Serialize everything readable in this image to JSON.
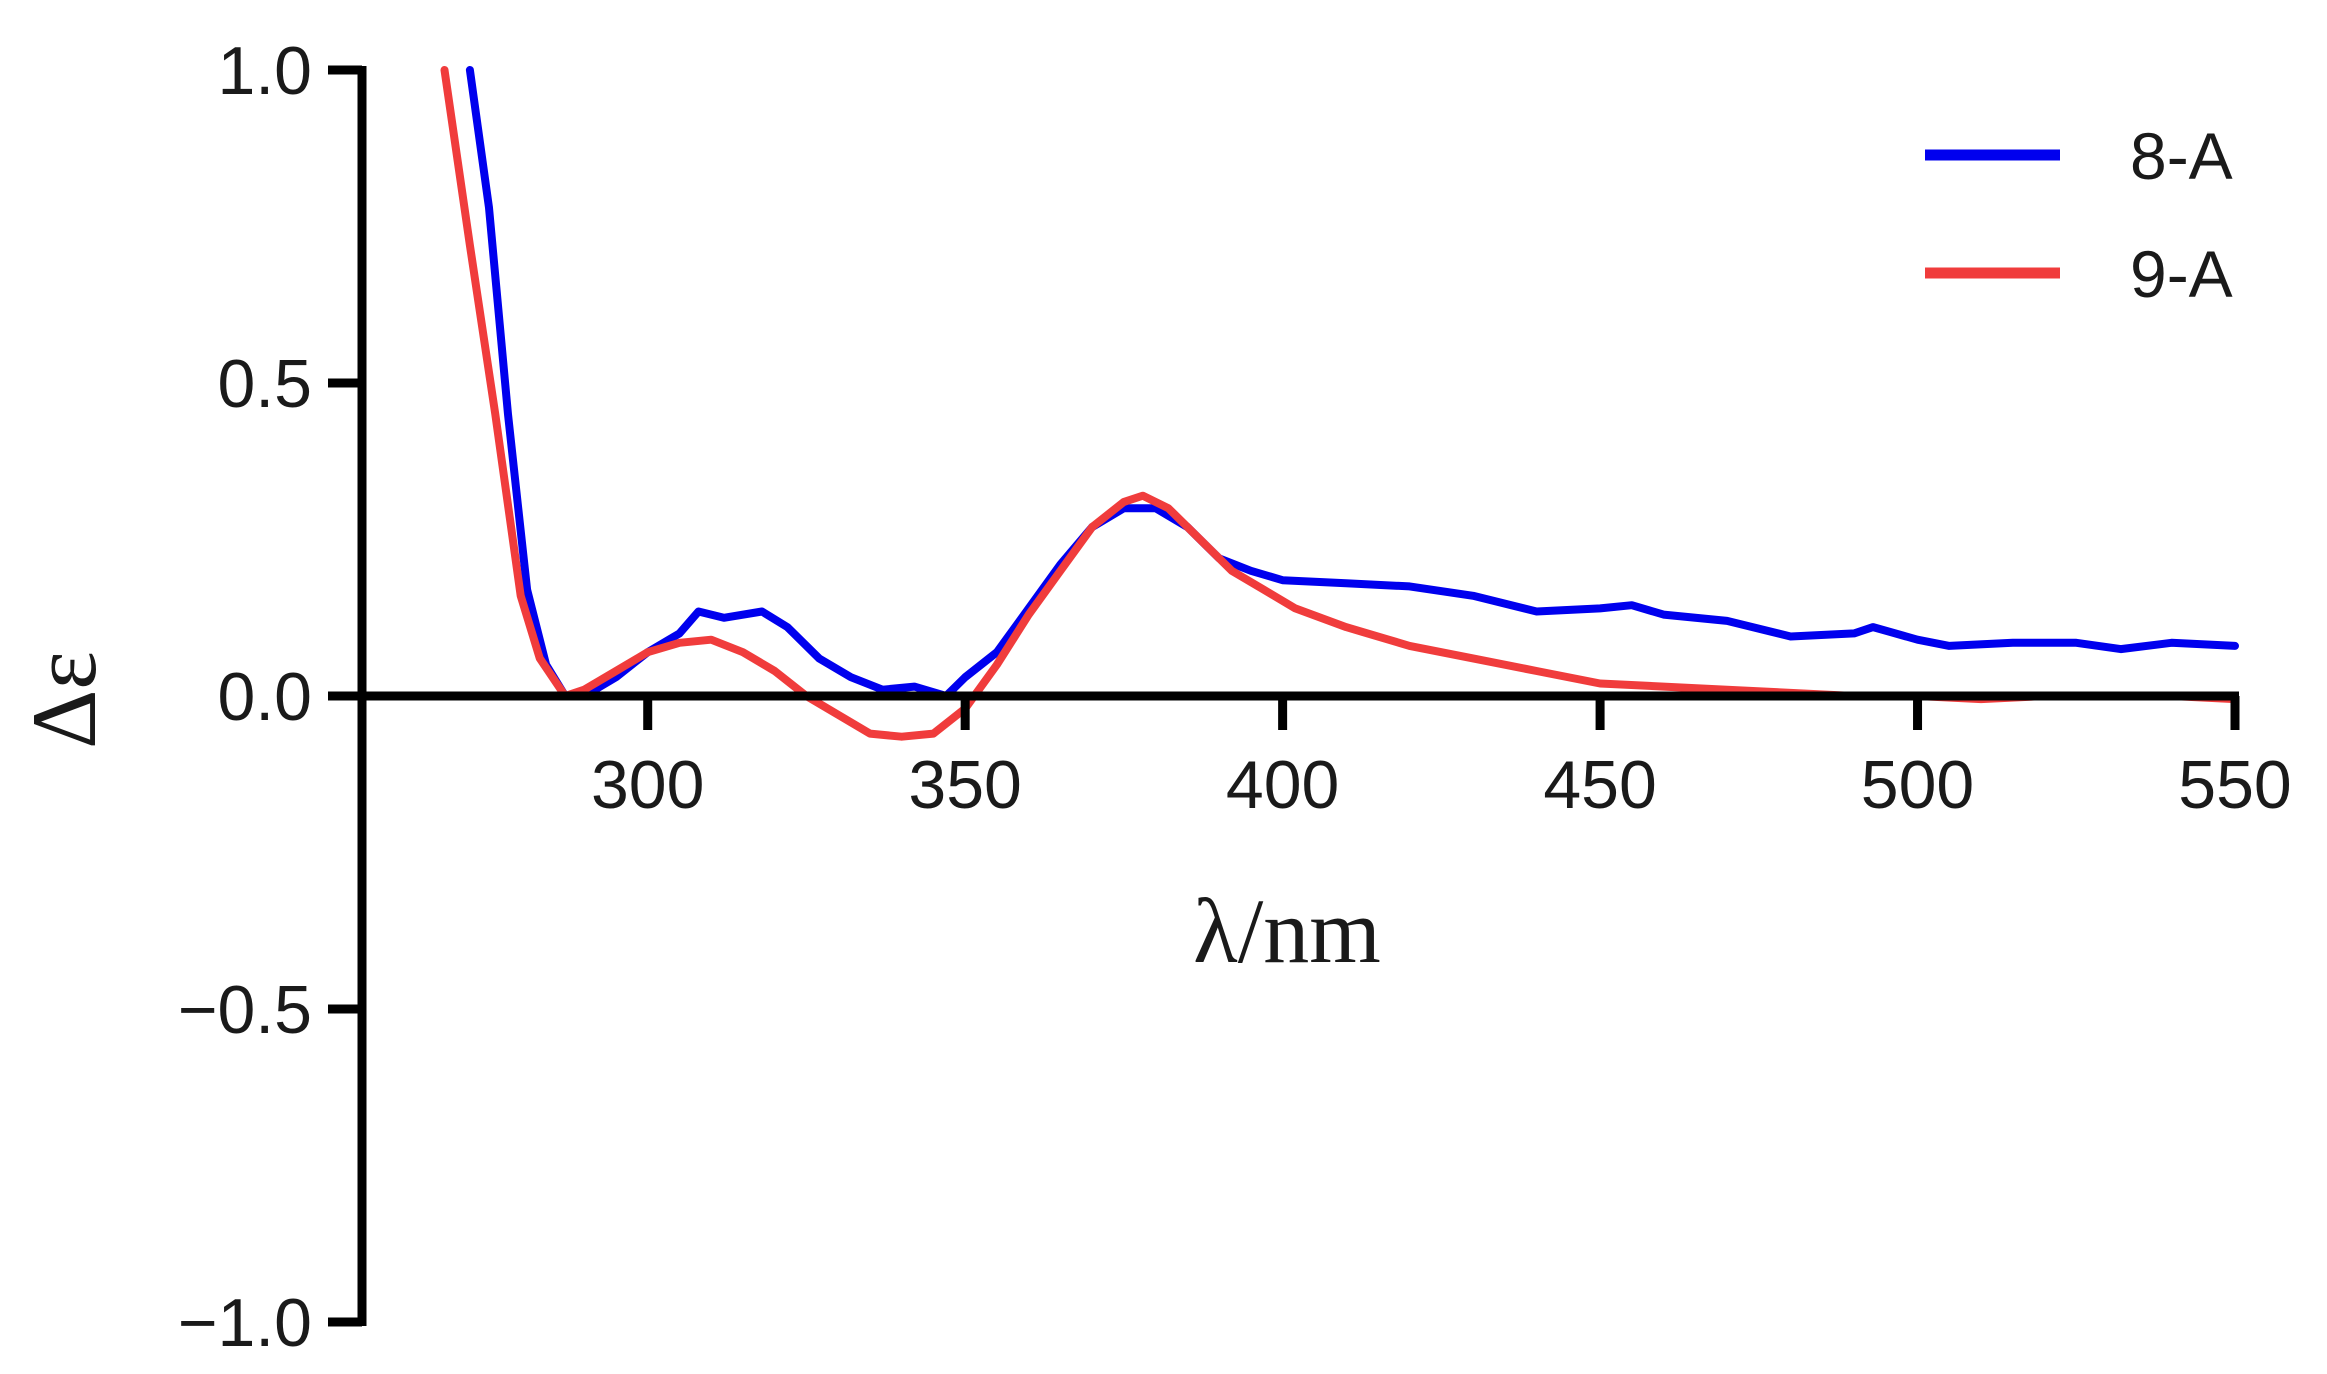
{
  "chart_data": {
    "type": "line",
    "title": "",
    "xlabel": "λ/nm",
    "ylabel": "Δε",
    "xlim": [
      255,
      550
    ],
    "ylim": [
      -1.0,
      1.0
    ],
    "x_ticks": [
      300,
      350,
      400,
      450,
      500,
      550
    ],
    "y_ticks": [
      1.0,
      0.5,
      0.0,
      -0.5,
      -1.0
    ],
    "x_tick_labels": [
      "300",
      "350",
      "400",
      "450",
      "500",
      "550"
    ],
    "y_tick_labels": [
      "1.0",
      "0.5",
      "0.0",
      "−0.5",
      "−1.0"
    ],
    "grid": false,
    "legend_position": "top-right",
    "series": [
      {
        "name": "8-A",
        "color": "#0000ee",
        "points": [
          [
            272,
            1.0
          ],
          [
            275,
            0.78
          ],
          [
            278,
            0.45
          ],
          [
            281,
            0.17
          ],
          [
            284,
            0.05
          ],
          [
            287,
            0.0
          ],
          [
            290,
            0.0
          ],
          [
            295,
            0.03
          ],
          [
            300,
            0.07
          ],
          [
            305,
            0.1
          ],
          [
            308,
            0.135
          ],
          [
            312,
            0.125
          ],
          [
            318,
            0.135
          ],
          [
            322,
            0.11
          ],
          [
            327,
            0.06
          ],
          [
            332,
            0.03
          ],
          [
            337,
            0.01
          ],
          [
            342,
            0.015
          ],
          [
            347,
            0.0
          ],
          [
            350,
            0.03
          ],
          [
            355,
            0.07
          ],
          [
            360,
            0.14
          ],
          [
            365,
            0.21
          ],
          [
            370,
            0.27
          ],
          [
            375,
            0.3
          ],
          [
            380,
            0.3
          ],
          [
            385,
            0.27
          ],
          [
            390,
            0.22
          ],
          [
            395,
            0.2
          ],
          [
            400,
            0.185
          ],
          [
            410,
            0.18
          ],
          [
            420,
            0.175
          ],
          [
            430,
            0.16
          ],
          [
            440,
            0.135
          ],
          [
            450,
            0.14
          ],
          [
            455,
            0.145
          ],
          [
            460,
            0.13
          ],
          [
            470,
            0.12
          ],
          [
            480,
            0.095
          ],
          [
            490,
            0.1
          ],
          [
            493,
            0.11
          ],
          [
            500,
            0.09
          ],
          [
            505,
            0.08
          ],
          [
            515,
            0.085
          ],
          [
            525,
            0.085
          ],
          [
            532,
            0.075
          ],
          [
            540,
            0.085
          ],
          [
            550,
            0.08
          ]
        ]
      },
      {
        "name": "9-A",
        "color": "#f03c3c",
        "points": [
          [
            268,
            1.0
          ],
          [
            272,
            0.72
          ],
          [
            276,
            0.45
          ],
          [
            280,
            0.16
          ],
          [
            283,
            0.06
          ],
          [
            287,
            0.0
          ],
          [
            290,
            0.01
          ],
          [
            295,
            0.04
          ],
          [
            300,
            0.07
          ],
          [
            305,
            0.085
          ],
          [
            310,
            0.09
          ],
          [
            315,
            0.07
          ],
          [
            320,
            0.04
          ],
          [
            325,
            0.0
          ],
          [
            330,
            -0.03
          ],
          [
            335,
            -0.06
          ],
          [
            340,
            -0.065
          ],
          [
            345,
            -0.06
          ],
          [
            350,
            -0.02
          ],
          [
            355,
            0.05
          ],
          [
            360,
            0.13
          ],
          [
            365,
            0.2
          ],
          [
            370,
            0.27
          ],
          [
            375,
            0.31
          ],
          [
            378,
            0.32
          ],
          [
            382,
            0.3
          ],
          [
            387,
            0.25
          ],
          [
            392,
            0.2
          ],
          [
            397,
            0.17
          ],
          [
            402,
            0.14
          ],
          [
            410,
            0.11
          ],
          [
            420,
            0.08
          ],
          [
            430,
            0.06
          ],
          [
            440,
            0.04
          ],
          [
            450,
            0.02
          ],
          [
            460,
            0.015
          ],
          [
            470,
            0.01
          ],
          [
            480,
            0.005
          ],
          [
            490,
            0.0
          ],
          [
            500,
            0.0
          ],
          [
            510,
            -0.005
          ],
          [
            520,
            0.0
          ],
          [
            530,
            0.0
          ],
          [
            540,
            0.0
          ],
          [
            550,
            -0.005
          ]
        ]
      }
    ]
  }
}
